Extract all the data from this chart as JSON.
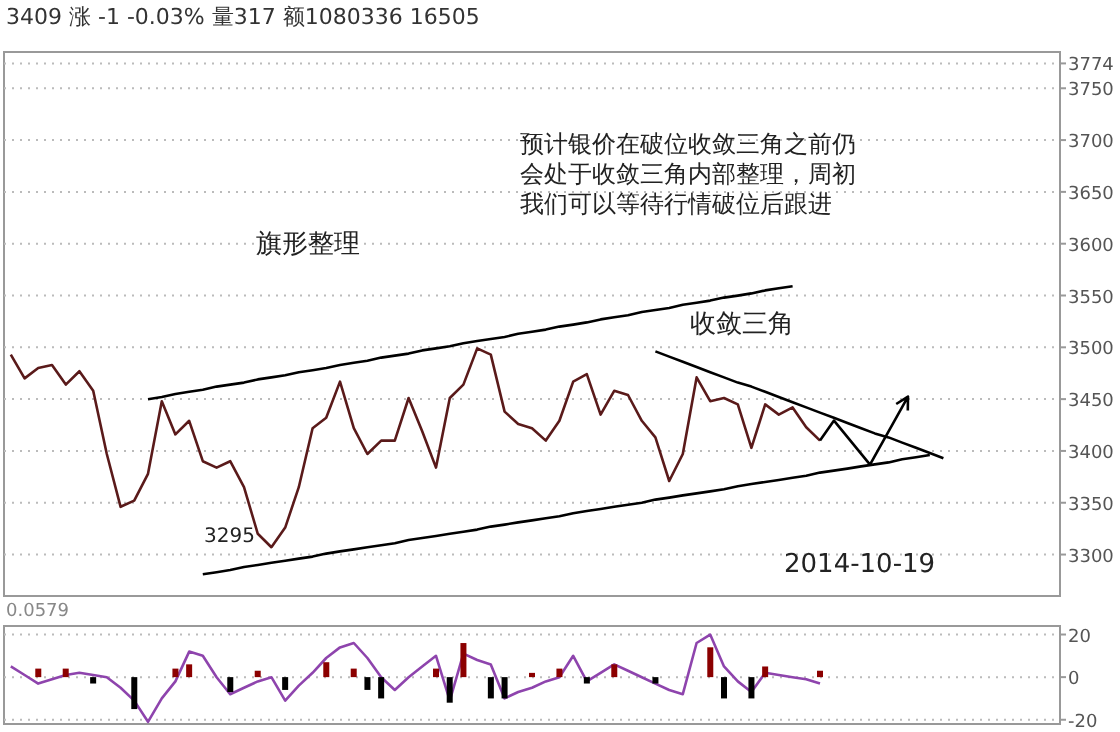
{
  "chart_data": [
    {
      "type": "line",
      "title": "3409 涨 -1 -0.03% 量317 额1080336 16505",
      "categories": [
        null,
        null,
        null,
        null,
        null,
        null,
        null,
        null,
        null,
        null,
        null,
        null,
        null,
        null,
        null,
        null,
        null,
        null,
        null,
        null,
        null,
        null,
        null,
        null,
        null,
        null,
        null,
        null,
        null,
        null,
        null,
        null,
        null,
        null,
        null,
        null,
        null,
        null,
        null,
        null,
        null,
        null,
        null,
        null,
        null,
        null,
        null,
        null,
        null,
        null,
        null,
        null,
        null,
        null,
        null,
        null,
        null,
        null,
        null,
        null,
        null,
        null,
        null,
        null,
        null,
        null,
        null,
        null,
        null,
        null,
        null,
        null,
        null,
        null,
        null,
        null,
        null
      ],
      "ylim": [
        3260,
        3785
      ],
      "yticks": [
        3300,
        3350,
        3400,
        3450,
        3500,
        3550,
        3600,
        3650,
        3700,
        3750,
        3774
      ],
      "grid": "y",
      "marker": "none",
      "line_style": "solid",
      "annotations": [
        "旗形整理",
        "收敛三角",
        "预计银价在破位收敛三角之前仍",
        "会处于收敛三角内部整理，周初",
        "我们可以等待行情破位后跟进",
        "2014-10-19",
        "3295"
      ],
      "series": [
        {
          "color": "#5a1a1a",
          "values": [
            3493,
            3470,
            3480,
            3483,
            3464,
            3477,
            3458,
            3397,
            3346,
            3352,
            3378,
            3448,
            3416,
            3429,
            3390,
            3384,
            3390,
            3365,
            3320,
            3307,
            3326,
            3365,
            3422,
            3432,
            3467,
            3422,
            3397,
            3410,
            3410,
            3451,
            3419,
            3384,
            3451,
            3464,
            3499,
            3493,
            3438,
            3426,
            3422,
            3410,
            3429,
            3467,
            3474,
            3435,
            3458,
            3454,
            3429,
            3413,
            3371,
            3397,
            3471,
            3448,
            3451,
            3445,
            3403,
            3445,
            3435,
            3442,
            3423,
            3410,
            null,
            null,
            null,
            null,
            null,
            null,
            null,
            null,
            null,
            null,
            null,
            null,
            null,
            null,
            null,
            null,
            null
          ]
        },
        {
          "color": "#000000",
          "values": [
            null,
            null,
            null,
            null,
            null,
            null,
            null,
            null,
            null,
            null,
            3450,
            3452,
            3455,
            3457,
            3459,
            3462,
            3464,
            3466,
            3469,
            3471,
            3473,
            3476,
            3478,
            3480,
            3483,
            3485,
            3487,
            3490,
            3492,
            3494,
            3497,
            3499,
            3501,
            3504,
            3506,
            3508,
            3510,
            3513,
            3515,
            3517,
            3520,
            3522,
            3524,
            3527,
            3529,
            3531,
            3534,
            3536,
            3538,
            3541,
            3543,
            3545,
            3548,
            3550,
            3552,
            3555,
            3557,
            3559,
            null,
            null,
            null,
            null,
            null,
            null,
            null,
            null,
            null,
            null,
            null,
            null,
            null,
            null,
            null,
            null,
            null,
            null,
            null
          ]
        },
        {
          "color": "#000000",
          "values": [
            null,
            null,
            null,
            null,
            null,
            null,
            null,
            null,
            null,
            null,
            null,
            null,
            null,
            null,
            3281,
            3283,
            3285,
            3288,
            3290,
            3292,
            3294,
            3296,
            3298,
            3301,
            3303,
            3305,
            3307,
            3309,
            3311,
            3314,
            3316,
            3318,
            3320,
            3322,
            3324,
            3327,
            3329,
            3331,
            3333,
            3335,
            3337,
            3340,
            3342,
            3344,
            3346,
            3348,
            3350,
            3353,
            3355,
            3357,
            3359,
            3361,
            3363,
            3366,
            3368,
            3370,
            3372,
            3374,
            3376,
            3379,
            3381,
            3383,
            3385,
            3387,
            3389,
            3392,
            3394,
            3396,
            null,
            null,
            null,
            null,
            null,
            null,
            null,
            null,
            null
          ]
        },
        {
          "color": "#000000",
          "values": [
            null,
            null,
            null,
            null,
            null,
            null,
            null,
            null,
            null,
            null,
            null,
            null,
            null,
            null,
            null,
            null,
            null,
            null,
            null,
            null,
            null,
            null,
            null,
            null,
            null,
            null,
            null,
            null,
            null,
            null,
            null,
            null,
            null,
            null,
            null,
            null,
            null,
            null,
            null,
            null,
            null,
            null,
            null,
            null,
            null,
            null,
            null,
            3496,
            3491,
            3486,
            3481,
            3476,
            3471,
            3466,
            3462,
            3457,
            3452,
            3447,
            3442,
            3437,
            3432,
            3427,
            3422,
            3417,
            3413,
            3408,
            3403,
            3398,
            3393,
            null,
            null,
            null,
            null,
            null,
            null,
            null,
            null
          ]
        }
      ]
    },
    {
      "type": "line",
      "title": "0.0579",
      "categories": [
        null,
        null,
        null,
        null,
        null,
        null,
        null,
        null,
        null,
        null,
        null,
        null,
        null,
        null,
        null,
        null,
        null,
        null,
        null,
        null,
        null,
        null,
        null,
        null,
        null,
        null,
        null,
        null,
        null,
        null,
        null,
        null,
        null,
        null,
        null,
        null,
        null,
        null,
        null,
        null,
        null,
        null,
        null,
        null,
        null,
        null,
        null,
        null,
        null,
        null,
        null,
        null,
        null,
        null,
        null,
        null,
        null,
        null,
        null,
        null,
        null,
        null,
        null,
        null,
        null,
        null,
        null,
        null,
        null,
        null,
        null,
        null,
        null,
        null,
        null,
        null,
        null
      ],
      "ylim": [
        -22,
        24
      ],
      "yticks": [
        20,
        0,
        -20
      ],
      "grid": "y",
      "marker": "none",
      "line_style": "solid",
      "series": [
        {
          "color": "#8e44ad",
          "values": [
            5,
            1,
            -3,
            -1,
            1,
            2,
            1,
            0,
            -5,
            -11,
            -21,
            -10,
            -2,
            12,
            10,
            0,
            -8,
            -5,
            -2,
            0,
            -11,
            -4,
            2,
            9,
            14,
            16,
            9,
            0,
            -6,
            0,
            5,
            10,
            -11,
            11,
            8,
            6,
            -10,
            -7,
            -5,
            -2,
            0,
            10,
            -2,
            2,
            6,
            3,
            0,
            -3,
            -6,
            -8,
            16,
            20,
            5,
            -2,
            -7,
            2,
            1,
            0,
            -1,
            -3,
            null,
            null,
            null,
            null,
            null,
            null,
            null,
            null,
            null,
            null,
            null,
            null,
            null,
            null,
            null,
            null,
            null
          ]
        },
        {
          "type": "bar",
          "values": [
            null,
            null,
            4,
            null,
            4,
            null,
            -3,
            null,
            null,
            -15,
            null,
            null,
            4,
            6,
            null,
            null,
            -7,
            null,
            3,
            null,
            -6,
            null,
            null,
            7,
            null,
            4,
            -6,
            -10,
            null,
            null,
            null,
            4,
            -12,
            16,
            null,
            -10,
            -10,
            null,
            2,
            null,
            4,
            null,
            -3,
            null,
            6,
            null,
            null,
            -3,
            null,
            null,
            null,
            14,
            -10,
            null,
            -10,
            5,
            null,
            null,
            null,
            3,
            null,
            null,
            null,
            null,
            null,
            null,
            null,
            null,
            null,
            null,
            null,
            null,
            null,
            null,
            null,
            null,
            null
          ],
          "colors": [
            null,
            null,
            "#8b0000",
            null,
            "#8b0000",
            null,
            "#000000",
            null,
            null,
            "#000000",
            null,
            null,
            "#8b0000",
            "#8b0000",
            null,
            null,
            "#000000",
            null,
            "#8b0000",
            null,
            "#000000",
            null,
            null,
            "#8b0000",
            null,
            "#8b0000",
            "#000000",
            "#000000",
            null,
            null,
            null,
            "#8b0000",
            "#000000",
            "#8b0000",
            null,
            "#000000",
            "#000000",
            null,
            "#8b0000",
            null,
            "#8b0000",
            null,
            "#000000",
            null,
            "#8b0000",
            null,
            null,
            "#000000",
            null,
            null,
            null,
            "#8b0000",
            "#000000",
            null,
            "#000000",
            "#8b0000",
            null,
            null,
            null,
            "#8b0000",
            null,
            null,
            null,
            null,
            null,
            null,
            null,
            null,
            null,
            null,
            null,
            null,
            null,
            null,
            null,
            null,
            null
          ]
        }
      ]
    }
  ]
}
